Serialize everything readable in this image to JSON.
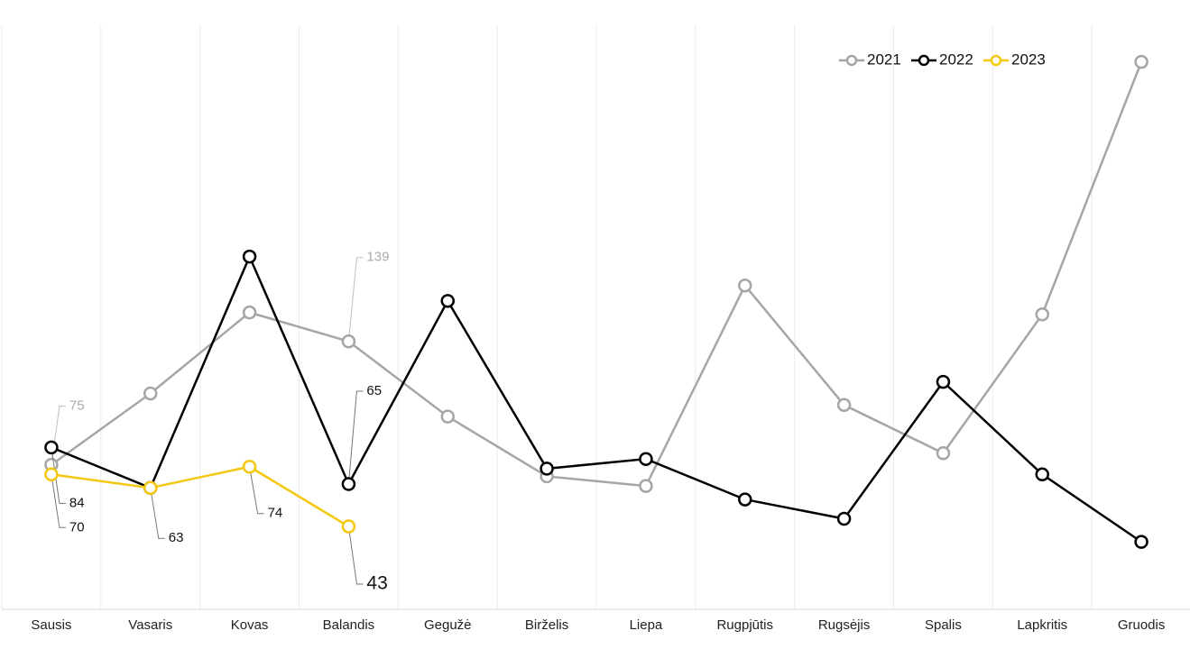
{
  "chart_data": {
    "type": "line",
    "categories": [
      "Sausis",
      "Vasaris",
      "Kovas",
      "Balandis",
      "Gegužė",
      "Birželis",
      "Liepa",
      "Rugpjūtis",
      "Rugsėjis",
      "Spalis",
      "Lapkritis",
      "Gruodis"
    ],
    "series": [
      {
        "name": "2021",
        "color": "#a6a6a6",
        "values": [
          75,
          112,
          154,
          139,
          100,
          69,
          64,
          168,
          106,
          81,
          153,
          284
        ],
        "value_labels": [
          "75",
          null,
          null,
          "139",
          null,
          null,
          null,
          null,
          null,
          null,
          null,
          null
        ]
      },
      {
        "name": "2022",
        "color": "#000000",
        "values": [
          84,
          63,
          183,
          65,
          160,
          73,
          78,
          57,
          47,
          118,
          70,
          35
        ],
        "value_labels": [
          "84",
          null,
          null,
          "65",
          null,
          null,
          null,
          null,
          null,
          null,
          null,
          null
        ]
      },
      {
        "name": "2023",
        "color": "#f2c811",
        "values": [
          70,
          63,
          74,
          43,
          null,
          null,
          null,
          null,
          null,
          null,
          null,
          null
        ],
        "value_labels": [
          "70",
          "63",
          "74",
          "43",
          null,
          null,
          null,
          null,
          null,
          null,
          null,
          null
        ]
      }
    ],
    "ylim": [
      0,
      303
    ],
    "grid": true,
    "legend": "top-right"
  }
}
